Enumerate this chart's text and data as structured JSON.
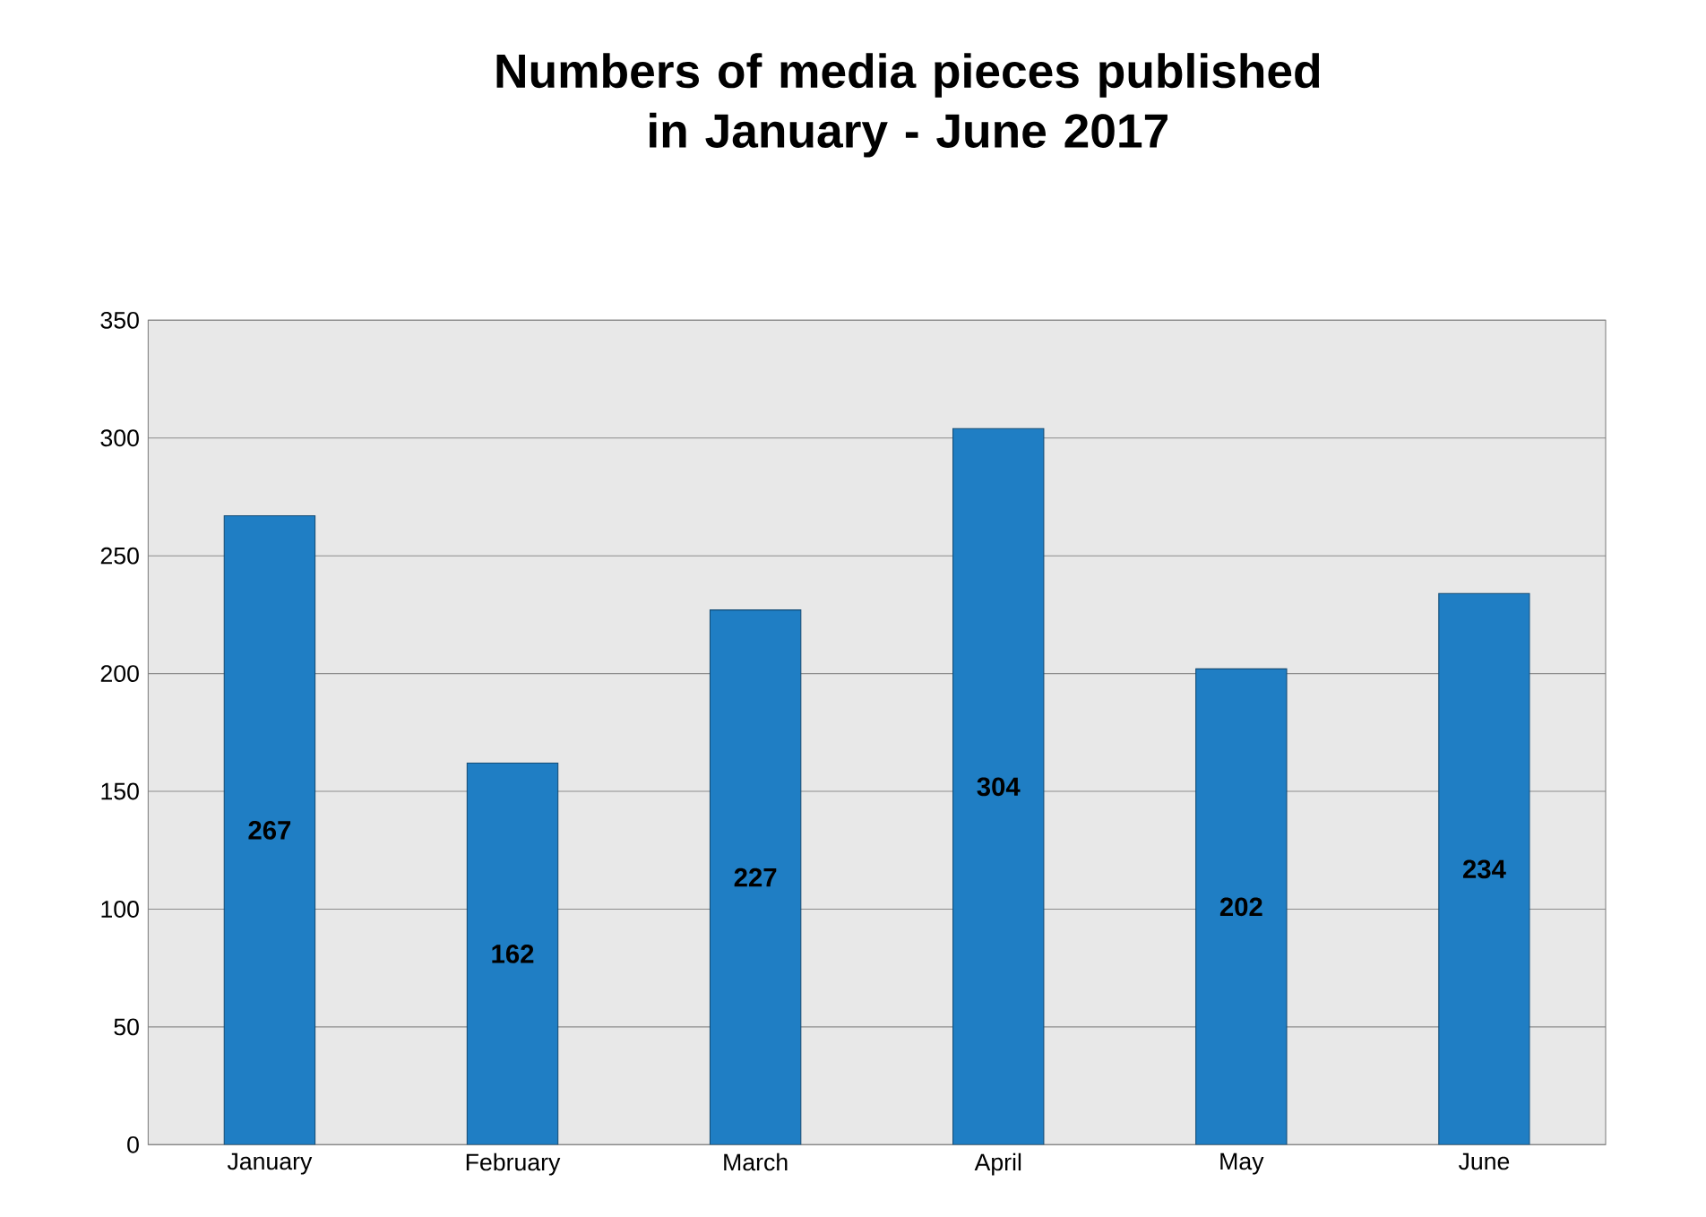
{
  "chart_data": {
    "type": "bar",
    "title": "Numbers of media pieces published\nin January - June 2017",
    "categories": [
      "January",
      "February",
      "March",
      "April",
      "May",
      "June"
    ],
    "values": [
      267,
      162,
      227,
      304,
      202,
      234
    ],
    "color": "#1f7ec4",
    "ylim": [
      0,
      350
    ],
    "yticks": [
      0,
      50,
      100,
      150,
      200,
      250,
      300,
      350
    ],
    "grid": "y",
    "data_labels": true
  }
}
